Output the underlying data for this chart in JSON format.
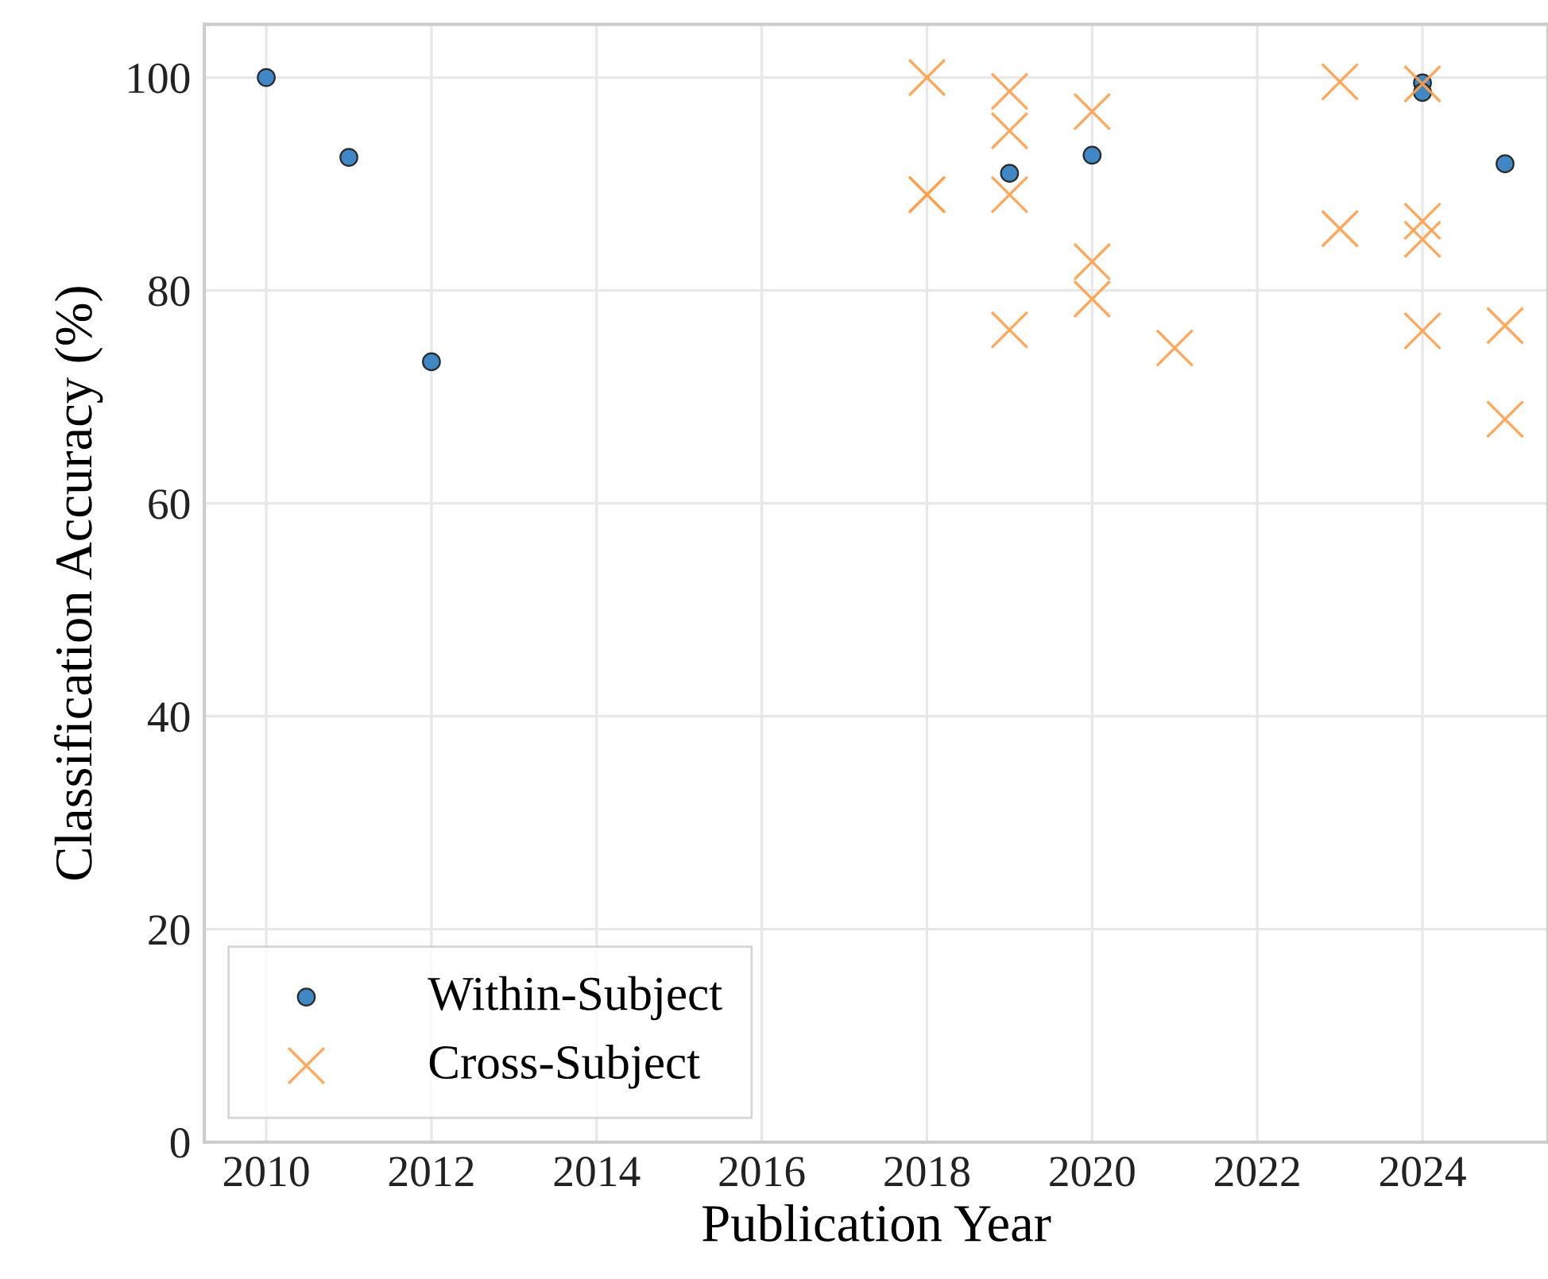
{
  "chart_data": {
    "type": "scatter",
    "xlabel": "Publication Year",
    "ylabel": "Classification Accuracy (%)",
    "series": [
      {
        "name": "Within-Subject",
        "color": "#3f88c5",
        "marker": "circle",
        "x": [
          2010,
          2011,
          2012,
          2019,
          2020,
          2024,
          2024,
          2025
        ],
        "values": [
          100,
          92.5,
          73.3,
          91.0,
          92.7,
          99.5,
          98.6,
          91.9
        ]
      },
      {
        "name": "Cross-Subject",
        "color": "#ff9f4a",
        "marker": "cross",
        "x": [
          2018,
          2018,
          2018,
          2019,
          2019,
          2019,
          2019,
          2020,
          2020,
          2020,
          2021,
          2023,
          2023,
          2024,
          2024,
          2024,
          2024,
          2025,
          2025
        ],
        "values": [
          100,
          89,
          89,
          98.7,
          95.0,
          89.0,
          76.3,
          96.8,
          82.7,
          79.2,
          74.6,
          99.6,
          85.8,
          99.4,
          86.5,
          84.8,
          76.2,
          76.7,
          67.9
        ]
      }
    ],
    "xlim": [
      2009.25,
      2025.52
    ],
    "xticks": [
      2010,
      2012,
      2014,
      2016,
      2018,
      2020,
      2022,
      2024
    ],
    "ylim": [
      0,
      105
    ],
    "yticks": [
      0,
      20,
      40,
      60,
      80,
      100
    ],
    "grid": true,
    "legend": "bottom left"
  }
}
